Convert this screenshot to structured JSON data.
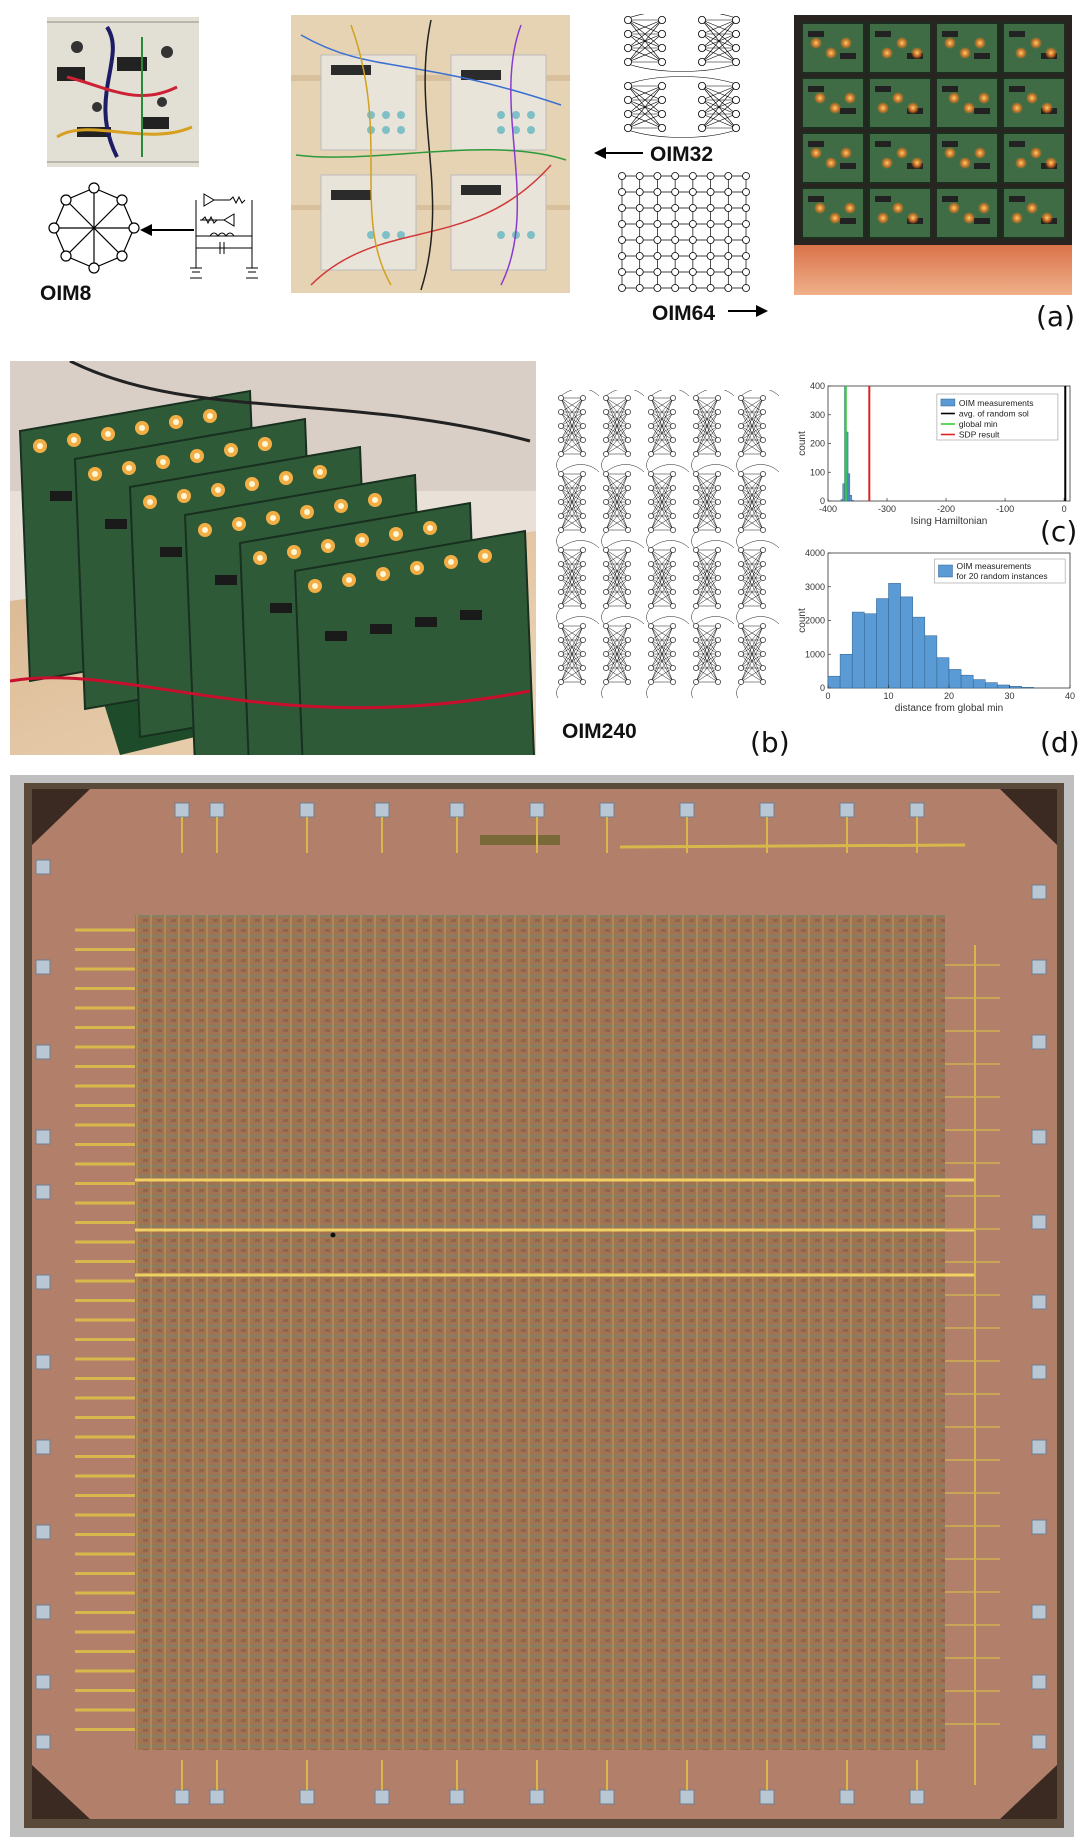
{
  "panels": {
    "a": "(a)",
    "b": "(b)",
    "c": "(c)",
    "d": "(d)"
  },
  "labels": {
    "oim8": "OIM8",
    "oim32": "OIM32",
    "oim64": "OIM64",
    "oim240": "OIM240"
  },
  "chart_data": [
    {
      "type": "histogram",
      "panel": "(c)",
      "xlabel": "Ising Hamiltonian",
      "ylabel": "count",
      "xlim": [
        -400,
        10
      ],
      "ylim": [
        0,
        400
      ],
      "xticks": [
        -400,
        -300,
        -200,
        -100,
        0
      ],
      "yticks": [
        0,
        100,
        200,
        300,
        400
      ],
      "legend": [
        "OIM measurements",
        "avg. of random sol",
        "global min",
        "SDP result"
      ],
      "legend_position": "top-right",
      "bins": {
        "x": [
          -378,
          -375,
          -372,
          -369,
          -366,
          -363,
          -360
        ],
        "counts": [
          5,
          60,
          400,
          240,
          95,
          20,
          3
        ]
      },
      "vlines": {
        "avg_random_sol": 2,
        "global_min": -370,
        "sdp_result": -330
      },
      "colors": {
        "bars": "#5a9bd5",
        "avg": "#000000",
        "global_min": "#33cc33",
        "sdp": "#dd2222"
      }
    },
    {
      "type": "histogram",
      "panel": "(d)",
      "xlabel": "distance from global min",
      "ylabel": "count",
      "xlim": [
        0,
        40
      ],
      "ylim": [
        0,
        4000
      ],
      "xticks": [
        0,
        10,
        20,
        30,
        40
      ],
      "yticks": [
        0,
        1000,
        2000,
        3000,
        4000
      ],
      "legend": [
        "OIM measurements",
        "for 20 random instances"
      ],
      "legend_position": "top-right",
      "bins": {
        "x": [
          0,
          2,
          4,
          6,
          8,
          10,
          12,
          14,
          16,
          18,
          20,
          22,
          24,
          26,
          28,
          30,
          32
        ],
        "counts": [
          350,
          1000,
          2250,
          2200,
          2650,
          3100,
          2700,
          2100,
          1550,
          900,
          550,
          380,
          250,
          160,
          90,
          50,
          20
        ]
      },
      "colors": {
        "bars": "#5a9bd5"
      }
    }
  ]
}
